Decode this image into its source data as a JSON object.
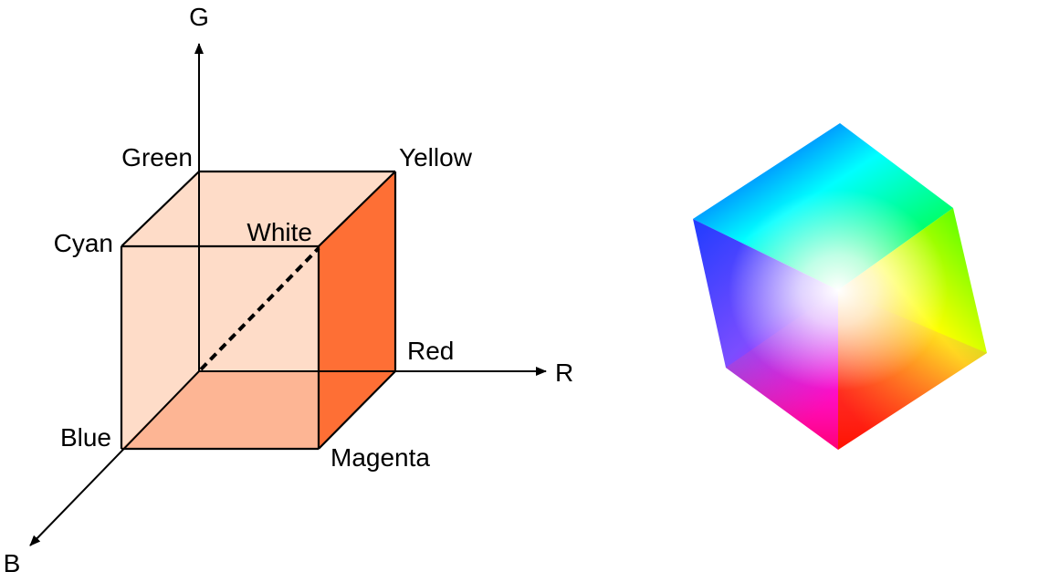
{
  "axes": {
    "g": "G",
    "r": "R",
    "b": "B"
  },
  "vertices": {
    "green": "Green",
    "yellow": "Yellow",
    "cyan": "Cyan",
    "white": "White",
    "red": "Red",
    "blue": "Blue",
    "magenta": "Magenta"
  },
  "colors": {
    "front_face": "#fedcc8",
    "bottom_face": "#fdb594",
    "right_face": "#fe6f35",
    "top_face": "#fedcc8",
    "cube_red": "#ff0000",
    "cube_green": "#00ff00",
    "cube_blue": "#0000ff",
    "cube_cyan": "#00ffff",
    "cube_magenta": "#ff00ff",
    "cube_yellow": "#ffff00",
    "cube_white": "#ffffff"
  }
}
